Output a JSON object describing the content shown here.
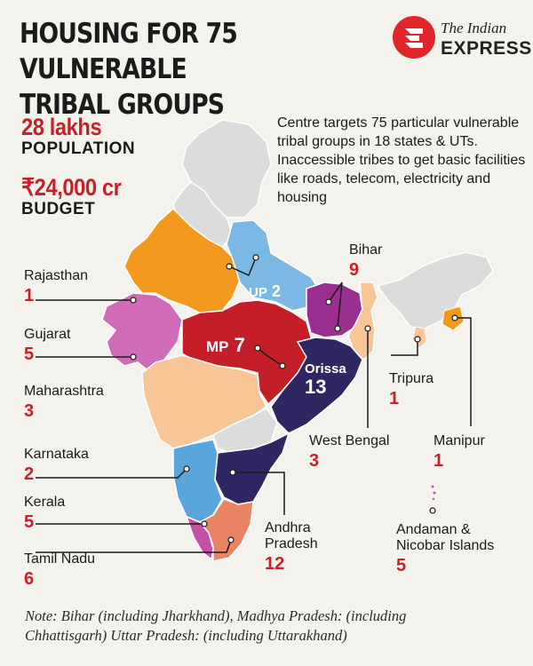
{
  "title": {
    "line1": "HOUSING FOR 75 VULNERABLE",
    "line2": "TRIBAL GROUPS"
  },
  "logo": {
    "line1": "The Indian",
    "line2": "EXPRESS"
  },
  "stats": {
    "population_value": "28 lakhs",
    "population_label": "POPULATION",
    "budget_value": "₹24,000 cr",
    "budget_label": "BUDGET"
  },
  "description": "Centre targets 75 particular vulnerable tribal groups in 18 states & UTs. Inaccessible tribes to get basic facilities like roads, telecom, electricity and housing",
  "states": {
    "rajasthan": {
      "name": "Rajasthan",
      "value": "1"
    },
    "gujarat": {
      "name": "Gujarat",
      "value": "5"
    },
    "maharashtra": {
      "name": "Maharashtra",
      "value": "3"
    },
    "karnataka": {
      "name": "Karnataka",
      "value": "2"
    },
    "kerala": {
      "name": "Kerala",
      "value": "5"
    },
    "tamil_nadu": {
      "name": "Tamil Nadu",
      "value": "6"
    },
    "andhra": {
      "name1": "Andhra",
      "name2": "Pradesh",
      "value": "12"
    },
    "west_bengal": {
      "name": "West Bengal",
      "value": "3"
    },
    "bihar": {
      "name": "Bihar",
      "value": "9"
    },
    "tripura": {
      "name": "Tripura",
      "value": "1"
    },
    "manipur": {
      "name": "Manipur",
      "value": "1"
    },
    "andaman": {
      "name1": "Andaman &",
      "name2": "Nicobar Islands",
      "value": "5"
    },
    "up": {
      "name": "UP",
      "value": "2"
    },
    "mp": {
      "name": "MP",
      "value": "7"
    },
    "orissa": {
      "name": "Orissa",
      "value": "13"
    }
  },
  "colors": {
    "rajasthan": "#f39a1e",
    "gujarat": "#d06cb7",
    "maharashtra": "#f8c597",
    "karnataka": "#5aa6dc",
    "kerala": "#c64fa6",
    "tamil_nadu": "#ea8264",
    "andhra": "#2e2762",
    "orissa": "#2e2762",
    "mp": "#c41e29",
    "up": "#7bb8e4",
    "bihar": "#9b2f8f",
    "west_bengal": "#f8c597",
    "unselected": "#dcdcdc",
    "accent": "#c8202b"
  },
  "note": {
    "line1": "Note: Bihar (including Jharkhand), Madhya Pradesh: (including",
    "line2": "Chhattisgarh)  Uttar Pradesh: (including Uttarakhand)"
  }
}
